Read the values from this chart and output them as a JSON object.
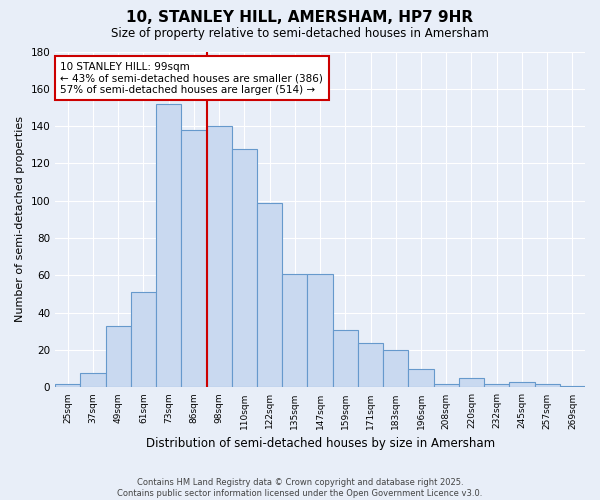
{
  "title": "10, STANLEY HILL, AMERSHAM, HP7 9HR",
  "subtitle": "Size of property relative to semi-detached houses in Amersham",
  "xlabel": "Distribution of semi-detached houses by size in Amersham",
  "ylabel": "Number of semi-detached properties",
  "bin_labels": [
    "25sqm",
    "37sqm",
    "49sqm",
    "61sqm",
    "73sqm",
    "86sqm",
    "98sqm",
    "110sqm",
    "122sqm",
    "135sqm",
    "147sqm",
    "159sqm",
    "171sqm",
    "183sqm",
    "196sqm",
    "208sqm",
    "220sqm",
    "232sqm",
    "245sqm",
    "257sqm",
    "269sqm"
  ],
  "bar_heights": [
    2,
    8,
    33,
    51,
    152,
    138,
    140,
    128,
    99,
    61,
    61,
    31,
    24,
    20,
    10,
    2,
    5,
    2,
    3,
    2,
    1
  ],
  "bar_color": "#c9d9f0",
  "bar_edge_color": "#6699cc",
  "ref_line_index": 6,
  "annotation_line1": "10 STANLEY HILL: 99sqm",
  "annotation_line2": "← 43% of semi-detached houses are smaller (386)",
  "annotation_line3": "57% of semi-detached houses are larger (514) →",
  "ylim": [
    0,
    180
  ],
  "yticks": [
    0,
    20,
    40,
    60,
    80,
    100,
    120,
    140,
    160,
    180
  ],
  "ref_line_color": "#cc0000",
  "annotation_box_edge": "#cc0000",
  "footer": "Contains HM Land Registry data © Crown copyright and database right 2025.\nContains public sector information licensed under the Open Government Licence v3.0.",
  "bg_color": "#e8eef8",
  "grid_color": "#ccccdd"
}
